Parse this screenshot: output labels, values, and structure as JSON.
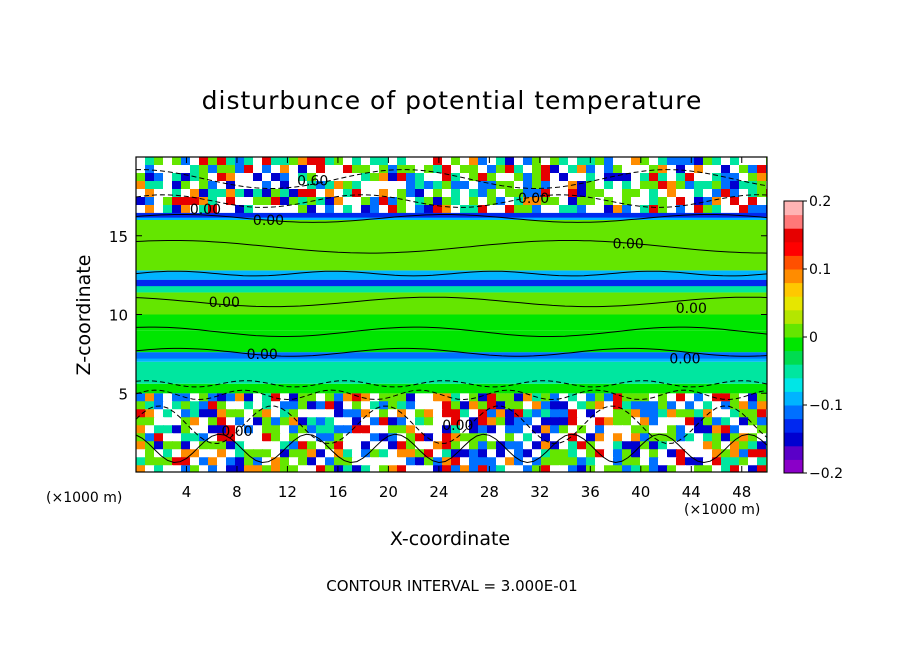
{
  "chart_data": {
    "type": "heatmap",
    "title": "disturbunce of potential temperature",
    "xlabel": "X-coordinate",
    "ylabel": "Z-coordinate",
    "x_unit": "(×1000 m)",
    "y_unit": "(×1000 m)",
    "xlim": [
      0,
      50
    ],
    "ylim": [
      0,
      20
    ],
    "x_ticks": [
      4,
      8,
      12,
      16,
      20,
      24,
      28,
      32,
      36,
      40,
      44,
      48
    ],
    "y_ticks": [
      5,
      10,
      15
    ],
    "colorbar": {
      "range": [
        -0.2,
        0.2
      ],
      "ticks": [
        "0.2",
        "0.1",
        "0",
        "−0.1",
        "−0.2"
      ],
      "colors": [
        "#8a00c8",
        "#5a00c8",
        "#0000d0",
        "#0028f0",
        "#0070ff",
        "#00b4ff",
        "#00e6e6",
        "#00e6a0",
        "#00dc50",
        "#00e600",
        "#64e600",
        "#b4e600",
        "#e6e600",
        "#ffc800",
        "#ff8c00",
        "#ff5000",
        "#ff0000",
        "#e60000",
        "#ff7878",
        "#ffb4b4"
      ]
    },
    "bands": [
      {
        "z0": 0.0,
        "z1": 5.0,
        "class": "turbulent-layer"
      },
      {
        "z0": 5.0,
        "z1": 5.6,
        "value": -0.02
      },
      {
        "z0": 5.6,
        "z1": 7.0,
        "value": -0.06
      },
      {
        "z0": 7.0,
        "z1": 7.6,
        "value": -0.1
      },
      {
        "z0": 7.6,
        "z1": 9.0,
        "value": -0.02
      },
      {
        "z0": 9.0,
        "z1": 10.0,
        "value": -0.01
      },
      {
        "z0": 10.0,
        "z1": 11.4,
        "value": 0.0
      },
      {
        "z0": 11.4,
        "z1": 12.2,
        "value": -0.05
      },
      {
        "z0": 12.2,
        "z1": 12.8,
        "value": -0.1
      },
      {
        "z0": 12.8,
        "z1": 16.0,
        "value": 0.0
      },
      {
        "z0": 16.0,
        "z1": 16.6,
        "value": -0.1
      },
      {
        "z0": 16.6,
        "z1": 20.0,
        "class": "turbulent-layer"
      }
    ],
    "contour_labels": [
      {
        "text": "0.00",
        "x": 10.5,
        "z": 16.0
      },
      {
        "text": "0.00",
        "x": 39.0,
        "z": 14.5
      },
      {
        "text": "0.00",
        "x": 7.0,
        "z": 10.8
      },
      {
        "text": "0.00",
        "x": 10.0,
        "z": 7.5
      },
      {
        "text": "0.00",
        "x": 31.5,
        "z": 17.4
      },
      {
        "text": "0.00",
        "x": 8.0,
        "z": 2.6
      },
      {
        "text": "0.00",
        "x": 44.0,
        "z": 10.4
      },
      {
        "text": "0.00",
        "x": 43.5,
        "z": 7.2
      },
      {
        "text": "0.00",
        "x": 25.5,
        "z": 3.0
      },
      {
        "text": "0.60",
        "x": 14.0,
        "z": 18.5
      },
      {
        "text": "0.00",
        "x": 5.5,
        "z": 16.7
      }
    ],
    "contour_interval": "CONTOUR INTERVAL = 3.000E-01"
  }
}
